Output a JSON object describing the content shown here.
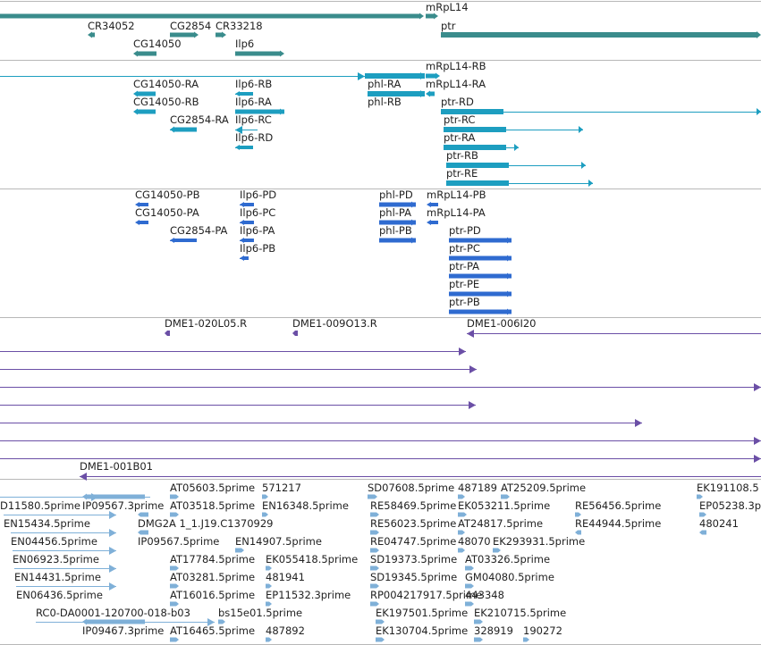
{
  "colors": {
    "gene": "#3a8c8c",
    "transcript": "#1d9ec0",
    "protein": "#2f6bd0",
    "clone": "#6b4fa6",
    "est": "#7fb0d8",
    "divider": "#b8b8b8"
  },
  "tracks": [
    {
      "name": "gene",
      "features": [
        {
          "label": "mRpL14"
        },
        {
          "label": "CR34052"
        },
        {
          "label": "CG2854"
        },
        {
          "label": "CR33218"
        },
        {
          "label": "ptr"
        },
        {
          "label": "CG14050"
        },
        {
          "label": "Ilp6"
        },
        {
          "label": ""
        }
      ]
    },
    {
      "name": "transcript",
      "features": [
        {
          "label": ""
        },
        {
          "label": "mRpL14-RB"
        },
        {
          "label": "CG14050-RA"
        },
        {
          "label": "Ilp6-RB"
        },
        {
          "label": "phl-RA"
        },
        {
          "label": "mRpL14-RA"
        },
        {
          "label": "CG14050-RB"
        },
        {
          "label": "Ilp6-RA"
        },
        {
          "label": "phl-RB"
        },
        {
          "label": "ptr-RD"
        },
        {
          "label": "CG2854-RA"
        },
        {
          "label": "Ilp6-RC"
        },
        {
          "label": "ptr-RC"
        },
        {
          "label": "Ilp6-RD"
        },
        {
          "label": "ptr-RA"
        },
        {
          "label": "ptr-RB"
        },
        {
          "label": "ptr-RE"
        }
      ]
    },
    {
      "name": "protein",
      "features": [
        {
          "label": "CG14050-PB"
        },
        {
          "label": "Ilp6-PD"
        },
        {
          "label": "phl-PD"
        },
        {
          "label": "mRpL14-PB"
        },
        {
          "label": "CG14050-PA"
        },
        {
          "label": "Ilp6-PC"
        },
        {
          "label": "phl-PA"
        },
        {
          "label": "mRpL14-PA"
        },
        {
          "label": "CG2854-PA"
        },
        {
          "label": "Ilp6-PA"
        },
        {
          "label": "phl-PB"
        },
        {
          "label": "ptr-PD"
        },
        {
          "label": "Ilp6-PB"
        },
        {
          "label": "ptr-PC"
        },
        {
          "label": "ptr-PA"
        },
        {
          "label": "ptr-PE"
        },
        {
          "label": "ptr-PB"
        }
      ]
    },
    {
      "name": "clone",
      "features": [
        {
          "label": "DME1-020L05.R"
        },
        {
          "label": "DME1-009O13.R"
        },
        {
          "label": "DME1-006I20"
        },
        {
          "label": ""
        },
        {
          "label": ""
        },
        {
          "label": ""
        },
        {
          "label": ""
        },
        {
          "label": ""
        },
        {
          "label": ""
        },
        {
          "label": ""
        },
        {
          "label": "DME1-001B01"
        }
      ]
    },
    {
      "name": "est",
      "features": [
        {
          "label": "AT05603.5prime"
        },
        {
          "label": "571217"
        },
        {
          "label": "SD07608.5prime"
        },
        {
          "label": "487189"
        },
        {
          "label": "AT25209.5prime"
        },
        {
          "label": "EK191108.5"
        },
        {
          "label": "D11580.5prime"
        },
        {
          "label": "IP09567.3prime"
        },
        {
          "label": "AT03518.5prime"
        },
        {
          "label": "EN16348.5prime"
        },
        {
          "label": "RE58469.5prime"
        },
        {
          "label": "EK053211.5prime"
        },
        {
          "label": "RE56456.5prime"
        },
        {
          "label": "EP05238.3p"
        },
        {
          "label": "EN15434.5prime"
        },
        {
          "label": "DMG2A 1_1.J19.C1370929"
        },
        {
          "label": "RE56023.5prime"
        },
        {
          "label": "AT24817.5prime"
        },
        {
          "label": "RE44944.5prime"
        },
        {
          "label": "480241"
        },
        {
          "label": "EN04456.5prime"
        },
        {
          "label": "IP09567.5prime"
        },
        {
          "label": "EN14907.5prime"
        },
        {
          "label": "RE04747.5prime"
        },
        {
          "label": "48070"
        },
        {
          "label": "EK293931.5prime"
        },
        {
          "label": "EN06923.5prime"
        },
        {
          "label": "AT17784.5prime"
        },
        {
          "label": "EK055418.5prime"
        },
        {
          "label": "SD19373.5prime"
        },
        {
          "label": "AT03326.5prime"
        },
        {
          "label": "EN14431.5prime"
        },
        {
          "label": "AT03281.5prime"
        },
        {
          "label": "481941"
        },
        {
          "label": "SD19345.5prime"
        },
        {
          "label": "GM04080.5prime"
        },
        {
          "label": "EN06436.5prime"
        },
        {
          "label": "AT16016.5prime"
        },
        {
          "label": "EP11532.3prime"
        },
        {
          "label": "RP004217917.5prime"
        },
        {
          "label": "443348"
        },
        {
          "label": "RC0-DA0001-120700-018-b03"
        },
        {
          "label": "bs15e01.5prime"
        },
        {
          "label": "EK197501.5prime"
        },
        {
          "label": "EK210715.5prime"
        },
        {
          "label": "IP09467.3prime"
        },
        {
          "label": "AT16465.5prime"
        },
        {
          "label": "487892"
        },
        {
          "label": "EK130704.5prime"
        },
        {
          "label": "328919"
        },
        {
          "label": "190272"
        }
      ]
    }
  ]
}
